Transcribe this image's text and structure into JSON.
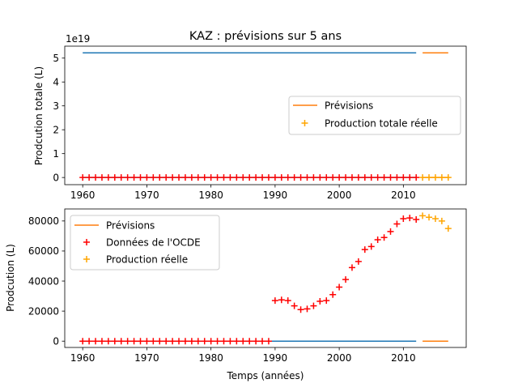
{
  "chart_data": [
    {
      "type": "scatter",
      "title": "KAZ : prévisions sur 5 ans",
      "xlabel": "",
      "ylabel": "Prodcution totale (L)",
      "offset_text": "1e19",
      "xlim": [
        1957.2,
        2019.8
      ],
      "ylim": [
        -0.3,
        5.5
      ],
      "xticks": [
        1960,
        1970,
        1980,
        1990,
        2000,
        2010
      ],
      "yticks": [
        0,
        1,
        2,
        3,
        4,
        5
      ],
      "legend": {
        "position": "center-right",
        "entries": [
          "Prévisions",
          "Production totale réelle"
        ]
      },
      "series": [
        {
          "kind": "line",
          "color": "#1f77b4",
          "x": [
            1960,
            2012
          ],
          "y": [
            5.22,
            5.22
          ]
        },
        {
          "kind": "line",
          "name": "Prévisions",
          "color": "#ff7f0e",
          "x": [
            2013,
            2017
          ],
          "y": [
            5.22,
            5.22
          ]
        },
        {
          "kind": "line",
          "color": "#1f77b4",
          "x": [
            1960,
            2012
          ],
          "y": [
            0,
            0
          ]
        },
        {
          "kind": "line",
          "color": "#ff7f0e",
          "x": [
            2013,
            2017
          ],
          "y": [
            0,
            0
          ]
        },
        {
          "kind": "scatter",
          "color": "#ff0000",
          "x_range": [
            1960,
            2012
          ],
          "y_const": 0
        },
        {
          "kind": "scatter",
          "name": "Production totale réelle",
          "color": "#ffa500",
          "x_range": [
            2013,
            2017
          ],
          "y_const": 0
        }
      ]
    },
    {
      "type": "scatter",
      "title": "",
      "xlabel": "Temps (années)",
      "ylabel": "Prodcution (L)",
      "xlim": [
        1957.2,
        2019.8
      ],
      "ylim": [
        -4200,
        88000
      ],
      "xticks": [
        1960,
        1970,
        1980,
        1990,
        2000,
        2010
      ],
      "yticks": [
        0,
        20000,
        40000,
        60000,
        80000
      ],
      "legend": {
        "position": "top-left",
        "entries": [
          "Prévisions",
          "Données de l'OCDE",
          "Production réelle"
        ]
      },
      "series": [
        {
          "kind": "line",
          "color": "#1f77b4",
          "x": [
            1960,
            2012
          ],
          "y": [
            0,
            0
          ]
        },
        {
          "kind": "line",
          "name": "Prévisions",
          "color": "#ff7f0e",
          "x": [
            2013,
            2017
          ],
          "y": [
            0,
            0
          ]
        },
        {
          "kind": "scatter",
          "name": "Données de l'OCDE",
          "color": "#ff0000",
          "x": [
            1960,
            1961,
            1962,
            1963,
            1964,
            1965,
            1966,
            1967,
            1968,
            1969,
            1970,
            1971,
            1972,
            1973,
            1974,
            1975,
            1976,
            1977,
            1978,
            1979,
            1980,
            1981,
            1982,
            1983,
            1984,
            1985,
            1986,
            1987,
            1988,
            1989,
            1990,
            1991,
            1992,
            1993,
            1994,
            1995,
            1996,
            1997,
            1998,
            1999,
            2000,
            2001,
            2002,
            2003,
            2004,
            2005,
            2006,
            2007,
            2008,
            2009,
            2010,
            2011,
            2012
          ],
          "y": [
            0,
            0,
            0,
            0,
            0,
            0,
            0,
            0,
            0,
            0,
            0,
            0,
            0,
            0,
            0,
            0,
            0,
            0,
            0,
            0,
            0,
            0,
            0,
            0,
            0,
            0,
            0,
            0,
            0,
            0,
            27000,
            27500,
            27000,
            23500,
            21000,
            21500,
            23500,
            26500,
            27000,
            31000,
            36000,
            41000,
            49000,
            53000,
            61000,
            63000,
            67500,
            69000,
            73000,
            78000,
            81500,
            82000,
            81000
          ]
        },
        {
          "kind": "scatter",
          "name": "Production réelle",
          "color": "#ffa500",
          "x": [
            2013,
            2014,
            2015,
            2016,
            2017
          ],
          "y": [
            83500,
            82500,
            81500,
            80000,
            75000
          ]
        }
      ]
    }
  ]
}
